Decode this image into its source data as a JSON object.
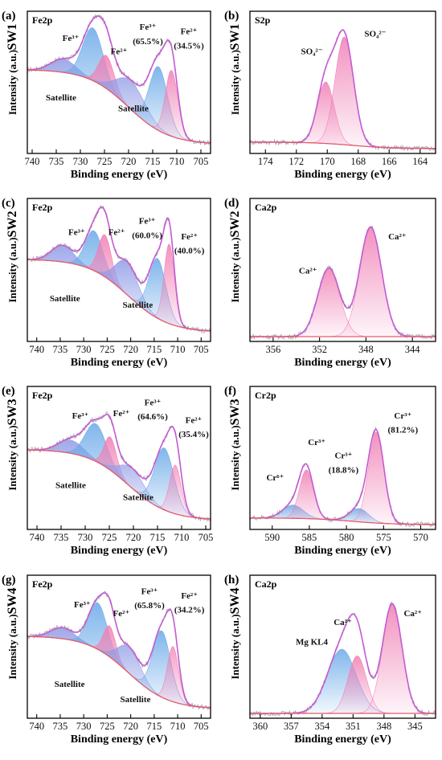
{
  "chart_data": [
    {
      "type": "area",
      "panel_label": "(a)",
      "sample": "SW1",
      "spectrum": "Fe2p",
      "xlabel": "Binding energy (eV)",
      "ylabel": "Intensity (a.u.)",
      "xlim": [
        741,
        703
      ],
      "xticks": [
        740,
        735,
        730,
        725,
        720,
        715,
        710,
        705
      ],
      "baseline": {
        "start": 0.72,
        "end": 0.04
      },
      "peaks": [
        {
          "name": "Satellite",
          "center": 733.5,
          "height": 0.12,
          "width": 2.6,
          "color": "#8f9be6"
        },
        {
          "name": "Fe3+",
          "center": 727.4,
          "height": 0.48,
          "width": 2.1,
          "color": "#6aa9e8"
        },
        {
          "name": "Fe2+",
          "center": 724.6,
          "height": 0.3,
          "width": 1.6,
          "color": "#f07eb4"
        },
        {
          "name": "Satellite",
          "center": 719.5,
          "height": 0.26,
          "width": 3.0,
          "color": "#8f9be6"
        },
        {
          "name": "Fe3+",
          "center": 713.8,
          "height": 0.58,
          "width": 1.9,
          "color": "#6aa9e8"
        },
        {
          "name": "Fe2+",
          "center": 711.1,
          "height": 0.6,
          "width": 1.3,
          "color": "#f07eb4"
        }
      ],
      "annotations": [
        {
          "text": "Fe³⁺",
          "x": 732,
          "y": 0.98
        },
        {
          "text": "Fe²⁺",
          "x": 722,
          "y": 0.86
        },
        {
          "text": "Fe³⁺",
          "x": 716,
          "y": 1.08
        },
        {
          "text": "(65.5%)",
          "x": 716,
          "y": 0.95
        },
        {
          "text": "Fe²⁺",
          "x": 707.5,
          "y": 1.04
        },
        {
          "text": "(34.5%)",
          "x": 707.5,
          "y": 0.91
        },
        {
          "text": "Satellite",
          "x": 734,
          "y": 0.44
        },
        {
          "text": "Satellite",
          "x": 719,
          "y": 0.34
        }
      ]
    },
    {
      "type": "area",
      "panel_label": "(b)",
      "sample": "SW1",
      "spectrum": "S2p",
      "xlabel": "Binding energy (eV)",
      "ylabel": "Intensity (a.u.)",
      "xlim": [
        175,
        163
      ],
      "xticks": [
        174,
        172,
        170,
        168,
        166,
        164
      ],
      "baseline": {
        "start": 0.06,
        "end": 0.0
      },
      "peaks": [
        {
          "name": "SO4 2-",
          "center": 170.1,
          "height": 0.56,
          "width": 0.55,
          "color": "#f07eb4"
        },
        {
          "name": "SO4 2-",
          "center": 168.9,
          "height": 0.98,
          "width": 0.6,
          "color": "#f07eb4"
        }
      ],
      "annotations": [
        {
          "text": "SO₄²⁻",
          "x": 171.0,
          "y": 0.86
        },
        {
          "text": "SO₄²⁻",
          "x": 166.9,
          "y": 1.02
        }
      ]
    },
    {
      "type": "area",
      "panel_label": "(c)",
      "sample": "SW2",
      "spectrum": "Fe2p",
      "xlabel": "Binding energy (eV)",
      "ylabel": "Intensity (a.u.)",
      "xlim": [
        742,
        703
      ],
      "xticks": [
        740,
        735,
        730,
        725,
        720,
        715,
        710,
        705
      ],
      "baseline": {
        "start": 0.7,
        "end": 0.04
      },
      "peaks": [
        {
          "name": "Satellite",
          "center": 734.5,
          "height": 0.15,
          "width": 2.4,
          "color": "#8f9be6"
        },
        {
          "name": "Fe3+",
          "center": 727.8,
          "height": 0.36,
          "width": 1.9,
          "color": "#6aa9e8"
        },
        {
          "name": "Fe2+",
          "center": 725.5,
          "height": 0.38,
          "width": 1.4,
          "color": "#f07eb4"
        },
        {
          "name": "Satellite",
          "center": 720.8,
          "height": 0.3,
          "width": 2.4,
          "color": "#8f9be6"
        },
        {
          "name": "Fe3+",
          "center": 714.3,
          "height": 0.54,
          "width": 1.8,
          "color": "#6aa9e8"
        },
        {
          "name": "Fe2+",
          "center": 711.8,
          "height": 0.72,
          "width": 1.1,
          "color": "#f07eb4"
        }
      ],
      "annotations": [
        {
          "text": "Fe³⁺",
          "x": 731.5,
          "y": 0.92
        },
        {
          "text": "Fe²⁺",
          "x": 723.0,
          "y": 0.92
        },
        {
          "text": "Fe³⁺",
          "x": 716.5,
          "y": 1.02
        },
        {
          "text": "(60.0%)",
          "x": 716.5,
          "y": 0.89
        },
        {
          "text": "Fe²⁺",
          "x": 707.5,
          "y": 0.88
        },
        {
          "text": "(40.0%)",
          "x": 707.5,
          "y": 0.75
        },
        {
          "text": "Satellite",
          "x": 734.0,
          "y": 0.32
        },
        {
          "text": "Satellite",
          "x": 718.5,
          "y": 0.26
        }
      ]
    },
    {
      "type": "area",
      "panel_label": "(d)",
      "sample": "SW2",
      "spectrum": "Ca2p",
      "xlabel": "Binding energy (eV)",
      "ylabel": "Intensity (a.u.)",
      "xlim": [
        358,
        342
      ],
      "xticks": [
        356,
        352,
        348,
        344
      ],
      "baseline": {
        "start": 0.0,
        "end": 0.0
      },
      "peaks": [
        {
          "name": "Ca2+",
          "center": 351.2,
          "height": 0.62,
          "width": 0.95,
          "color": "#f07eb4"
        },
        {
          "name": "Ca2+",
          "center": 347.6,
          "height": 0.99,
          "width": 0.95,
          "color": "#f07eb4"
        }
      ],
      "annotations": [
        {
          "text": "Ca²⁺",
          "x": 353.0,
          "y": 0.57
        },
        {
          "text": "Ca²⁺",
          "x": 345.3,
          "y": 0.88
        }
      ]
    },
    {
      "type": "area",
      "panel_label": "(e)",
      "sample": "SW3",
      "spectrum": "Fe2p",
      "xlabel": "Binding energy (eV)",
      "ylabel": "Intensity (a.u.)",
      "xlim": [
        742,
        704
      ],
      "xticks": [
        740,
        735,
        730,
        725,
        720,
        715,
        710,
        705
      ],
      "baseline": {
        "start": 0.68,
        "end": 0.04
      },
      "peaks": [
        {
          "name": "Satellite",
          "center": 733.0,
          "height": 0.12,
          "width": 2.6,
          "color": "#8f9be6"
        },
        {
          "name": "Fe3+",
          "center": 727.8,
          "height": 0.34,
          "width": 2.2,
          "color": "#6aa9e8"
        },
        {
          "name": "Fe2+",
          "center": 724.8,
          "height": 0.3,
          "width": 1.3,
          "color": "#f07eb4"
        },
        {
          "name": "Satellite",
          "center": 720.3,
          "height": 0.18,
          "width": 2.6,
          "color": "#8f9be6"
        },
        {
          "name": "Fe3+",
          "center": 713.6,
          "height": 0.56,
          "width": 2.0,
          "color": "#6aa9e8"
        },
        {
          "name": "Fe2+",
          "center": 711.3,
          "height": 0.44,
          "width": 1.2,
          "color": "#f07eb4"
        }
      ],
      "annotations": [
        {
          "text": "Fe³⁺",
          "x": 731.0,
          "y": 0.96
        },
        {
          "text": "Fe²⁺",
          "x": 722.5,
          "y": 0.98
        },
        {
          "text": "Fe³⁺",
          "x": 716.0,
          "y": 1.08
        },
        {
          "text": "(64.6%)",
          "x": 716.0,
          "y": 0.95
        },
        {
          "text": "Fe²⁺",
          "x": 707.5,
          "y": 0.92
        },
        {
          "text": "(35.4%)",
          "x": 707.5,
          "y": 0.79
        },
        {
          "text": "Satellite",
          "x": 733.0,
          "y": 0.33
        },
        {
          "text": "Satellite",
          "x": 719.0,
          "y": 0.22
        }
      ]
    },
    {
      "type": "area",
      "panel_label": "(f)",
      "sample": "SW3",
      "spectrum": "Cr2p",
      "xlabel": "Binding energy (eV)",
      "ylabel": "Intensity (a.u.)",
      "xlim": [
        593,
        568
      ],
      "xticks": [
        590,
        585,
        580,
        575,
        570
      ],
      "baseline": {
        "start": 0.06,
        "end": 0.0
      },
      "peaks": [
        {
          "name": "Cr6+",
          "center": 587.2,
          "height": 0.12,
          "width": 1.4,
          "color": "#6aa9e8"
        },
        {
          "name": "Cr3+",
          "center": 585.4,
          "height": 0.44,
          "width": 0.95,
          "color": "#f07eb4"
        },
        {
          "name": "Cr3+",
          "center": 578.3,
          "height": 0.12,
          "width": 1.3,
          "color": "#6aa9e8"
        },
        {
          "name": "Cr3+",
          "center": 576.0,
          "height": 0.82,
          "width": 1.05,
          "color": "#f07eb4"
        }
      ],
      "annotations": [
        {
          "text": "Cr⁶⁺",
          "x": 589.6,
          "y": 0.4
        },
        {
          "text": "Cr³⁺",
          "x": 584.0,
          "y": 0.72
        },
        {
          "text": "Cr³⁺",
          "x": 580.4,
          "y": 0.6
        },
        {
          "text": "(18.8%)",
          "x": 580.4,
          "y": 0.47
        },
        {
          "text": "Cr³⁺",
          "x": 572.4,
          "y": 0.96
        },
        {
          "text": "(81.2%)",
          "x": 572.4,
          "y": 0.83
        }
      ]
    },
    {
      "type": "area",
      "panel_label": "(g)",
      "sample": "SW4",
      "spectrum": "Fe2p",
      "xlabel": "Binding energy (eV)",
      "ylabel": "Intensity (a.u.)",
      "xlim": [
        742,
        703
      ],
      "xticks": [
        740,
        735,
        730,
        725,
        720,
        715,
        710,
        705
      ],
      "baseline": {
        "start": 0.7,
        "end": 0.04
      },
      "peaks": [
        {
          "name": "Satellite",
          "center": 734.5,
          "height": 0.1,
          "width": 2.5,
          "color": "#8f9be6"
        },
        {
          "name": "Fe3+",
          "center": 727.0,
          "height": 0.42,
          "width": 2.0,
          "color": "#6aa9e8"
        },
        {
          "name": "Fe2+",
          "center": 724.5,
          "height": 0.28,
          "width": 1.3,
          "color": "#f07eb4"
        },
        {
          "name": "Satellite",
          "center": 720.3,
          "height": 0.24,
          "width": 2.4,
          "color": "#8f9be6"
        },
        {
          "name": "Fe3+",
          "center": 713.4,
          "height": 0.6,
          "width": 1.9,
          "color": "#6aa9e8"
        },
        {
          "name": "Fe2+",
          "center": 711.0,
          "height": 0.5,
          "width": 1.2,
          "color": "#f07eb4"
        }
      ],
      "annotations": [
        {
          "text": "Fe³⁺",
          "x": 730.3,
          "y": 0.96
        },
        {
          "text": "Fe²⁺",
          "x": 722.0,
          "y": 0.88
        },
        {
          "text": "Fe³⁺",
          "x": 716.0,
          "y": 1.08
        },
        {
          "text": "(65.8%)",
          "x": 716.0,
          "y": 0.95
        },
        {
          "text": "Fe²⁺",
          "x": 707.5,
          "y": 1.04
        },
        {
          "text": "(34.2%)",
          "x": 707.5,
          "y": 0.91
        },
        {
          "text": "Satellite",
          "x": 733.0,
          "y": 0.24
        },
        {
          "text": "Satellite",
          "x": 719.0,
          "y": 0.1
        }
      ]
    },
    {
      "type": "area",
      "panel_label": "(h)",
      "sample": "SW4",
      "spectrum": "Ca2p",
      "xlabel": "Binding energy (eV)",
      "ylabel": "Intensity (a.u.)",
      "xlim": [
        361,
        343
      ],
      "xticks": [
        360,
        357,
        354,
        351,
        348,
        345
      ],
      "baseline": {
        "start": 0.0,
        "end": 0.0
      },
      "peaks": [
        {
          "name": "Mg KL4",
          "center": 352.1,
          "height": 0.58,
          "width": 1.4,
          "color": "#6aa9e8"
        },
        {
          "name": "Ca2+",
          "center": 350.6,
          "height": 0.52,
          "width": 0.9,
          "color": "#f07eb4"
        },
        {
          "name": "Ca2+",
          "center": 347.2,
          "height": 0.99,
          "width": 0.95,
          "color": "#f07eb4"
        }
      ],
      "annotations": [
        {
          "text": "Ca²⁺",
          "x": 352.0,
          "y": 0.8
        },
        {
          "text": "Mg KL4",
          "x": 355.0,
          "y": 0.62
        },
        {
          "text": "Ca²⁺",
          "x": 345.2,
          "y": 0.88
        }
      ]
    }
  ]
}
